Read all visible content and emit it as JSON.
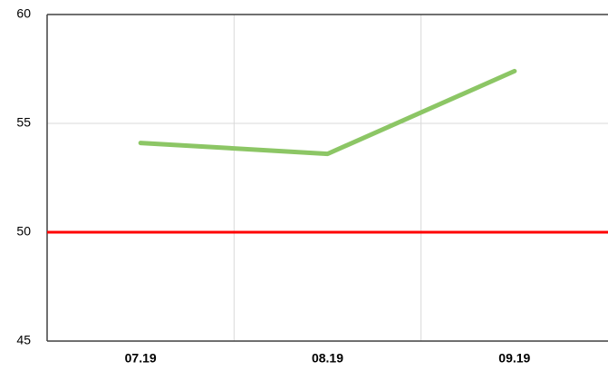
{
  "chart_data": {
    "type": "line",
    "categories": [
      "07.19",
      "08.19",
      "09.19"
    ],
    "series": [
      {
        "name": "series",
        "color": "#8cc665",
        "values": [
          54.1,
          53.6,
          57.4
        ]
      }
    ],
    "reference_line": {
      "value": 50,
      "color": "#ff0000"
    },
    "ylim": [
      45,
      60
    ],
    "yticks": [
      45,
      50,
      55,
      60
    ],
    "grid": true
  }
}
